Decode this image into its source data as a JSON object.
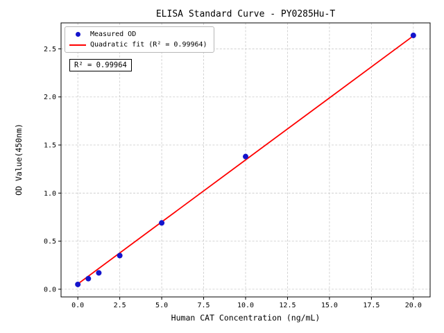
{
  "chart_data": {
    "type": "scatter",
    "title": "ELISA Standard Curve - PY0285Hu-T",
    "xlabel": "Human CAT Concentration (ng/mL)",
    "ylabel": "OD Value(450nm)",
    "xlim": [
      -1.0,
      21.0
    ],
    "ylim": [
      -0.08,
      2.77
    ],
    "xticks": [
      0.0,
      2.5,
      5.0,
      7.5,
      10.0,
      12.5,
      15.0,
      17.5,
      20.0
    ],
    "yticks": [
      0.0,
      0.5,
      1.0,
      1.5,
      2.0,
      2.5
    ],
    "grid": true,
    "legend_position": "upper left",
    "background": "#ffffff",
    "annotation": "R² = 0.99964",
    "series": [
      {
        "name": "Measured OD",
        "type": "scatter",
        "color": "#1414cc",
        "x": [
          0,
          0.625,
          1.25,
          2.5,
          5.0,
          10.0,
          20.0
        ],
        "y": [
          0.05,
          0.11,
          0.17,
          0.35,
          0.69,
          1.38,
          2.64
        ]
      },
      {
        "name": "Quadratic fit (R² = 0.99964)",
        "type": "line",
        "color": "#ff0000",
        "x": [
          0,
          5.0,
          10.0,
          15.0,
          20.0
        ],
        "y": [
          0.055,
          0.7,
          1.345,
          1.99,
          2.635
        ]
      }
    ]
  }
}
